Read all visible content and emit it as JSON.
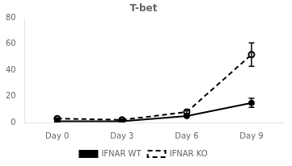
{
  "chart_data": {
    "type": "line",
    "title": "T-bet",
    "categories": [
      "Day 0",
      "Day 3",
      "Day 6",
      "Day 9"
    ],
    "series": [
      {
        "name": "IFNAR WT",
        "color": "#000000",
        "values": [
          1.0,
          1.0,
          5.0,
          15.0
        ],
        "errors": [
          0.5,
          0.5,
          0.8,
          3.5
        ],
        "line_style": "solid",
        "marker": "circle"
      },
      {
        "name": "IFNAR KO",
        "color": "#000000",
        "values": [
          3.0,
          2.0,
          8.0,
          52.0
        ],
        "errors": [
          0.5,
          0.5,
          1.0,
          9.0
        ],
        "line_style": "dashed",
        "marker": "open circle"
      }
    ],
    "ylim": [
      0,
      80
    ],
    "yticks": [
      0,
      20,
      40,
      60,
      80
    ],
    "grid": false,
    "legend": "bottom"
  }
}
